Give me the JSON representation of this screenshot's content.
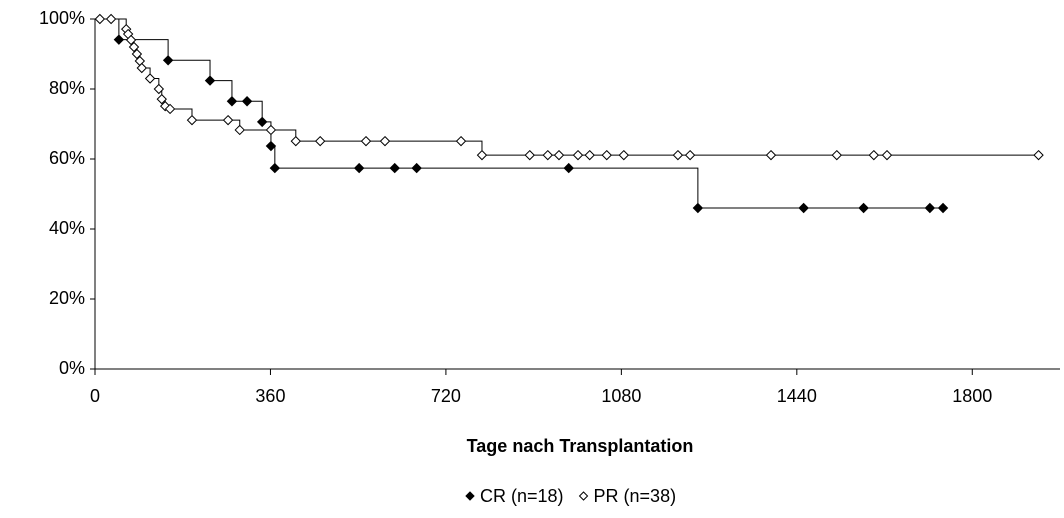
{
  "chart_data": {
    "type": "step",
    "xlabel": "Tage nach Transplantation",
    "xlim": [
      0,
      1980
    ],
    "xticks": [
      0,
      360,
      720,
      1080,
      1440,
      1800
    ],
    "ylim": [
      0,
      100
    ],
    "yticks": [
      {
        "value": 0,
        "label": "0%"
      },
      {
        "value": 20,
        "label": "20%"
      },
      {
        "value": 40,
        "label": "40%"
      },
      {
        "value": 60,
        "label": "60%"
      },
      {
        "value": 80,
        "label": "80%"
      },
      {
        "value": 100,
        "label": "100%"
      }
    ],
    "grid": false,
    "series": [
      {
        "name": "CR (n=18)",
        "color": "#000000",
        "marker": "filled",
        "x": [
          49,
          150,
          236,
          281,
          312,
          343,
          361,
          369,
          542,
          615,
          660,
          972,
          1237,
          1454,
          1577,
          1713,
          1740
        ],
        "values": [
          94.1,
          88.2,
          82.4,
          76.5,
          76.5,
          70.6,
          63.7,
          57.4,
          57.4,
          57.4,
          57.4,
          57.4,
          46.0,
          46.0,
          46.0,
          46.0,
          46.0
        ]
      },
      {
        "name": "PR (n=38)",
        "color": "#000000",
        "marker": "open",
        "x": [
          10,
          33,
          64,
          68,
          74,
          80,
          86,
          92,
          96,
          113,
          131,
          137,
          144,
          154,
          199,
          273,
          297,
          361,
          412,
          462,
          556,
          595,
          751,
          794,
          892,
          929,
          952,
          991,
          1015,
          1050,
          1085,
          1196,
          1221,
          1387,
          1522,
          1598,
          1625,
          1936
        ],
        "values": [
          100,
          100,
          97.1,
          95.7,
          94.0,
          92.0,
          90.0,
          88.0,
          86.0,
          83.0,
          80.0,
          77.1,
          75.1,
          74.3,
          71.1,
          71.1,
          68.3,
          68.3,
          65.1,
          65.1,
          65.1,
          65.1,
          65.1,
          61.1,
          61.1,
          61.1,
          61.1,
          61.1,
          61.1,
          61.1,
          61.1,
          61.1,
          61.1,
          61.1,
          61.1,
          61.1,
          61.1,
          61.1
        ]
      }
    ]
  }
}
